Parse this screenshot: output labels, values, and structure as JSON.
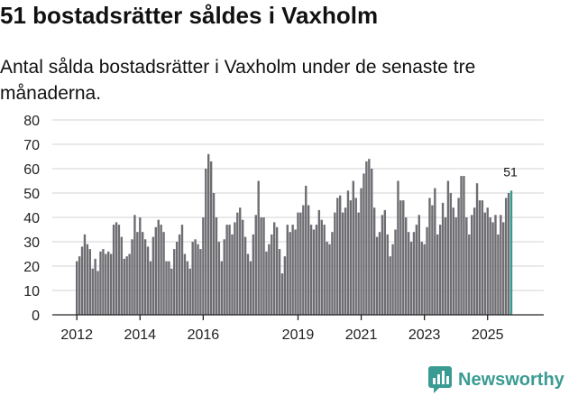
{
  "header": {
    "title": "51 bostadsrätter såldes i Vaxholm",
    "subtitle": "Antal sålda bostadsrätter i Vaxholm under de senaste tre månaderna."
  },
  "brand": {
    "name": "Newsworthy",
    "color": "#3a9b92",
    "icon": "newsworthy-chart-icon"
  },
  "chart_data": {
    "type": "bar",
    "title": "51 bostadsrätter såldes i Vaxholm",
    "subtitle": "Antal sålda bostadsrätter i Vaxholm under de senaste tre månaderna.",
    "xlabel": "",
    "ylabel": "",
    "ylim": [
      0,
      80
    ],
    "yticks": [
      0,
      10,
      20,
      30,
      40,
      50,
      60,
      70,
      80
    ],
    "xticks": [
      {
        "label": "2012",
        "index": 0
      },
      {
        "label": "2014",
        "index": 24
      },
      {
        "label": "2016",
        "index": 48
      },
      {
        "label": "2019",
        "index": 84
      },
      {
        "label": "2021",
        "index": 108
      },
      {
        "label": "2023",
        "index": 132
      },
      {
        "label": "2025",
        "index": 156
      }
    ],
    "start": "2012-01",
    "bar_color": "#6e6d72",
    "last_bar_color": "#3a9b92",
    "end_label": "51",
    "values": [
      22,
      24,
      28,
      33,
      29,
      27,
      19,
      23,
      18,
      26,
      27,
      25,
      26,
      25,
      37,
      38,
      37,
      32,
      23,
      24,
      25,
      31,
      41,
      34,
      40,
      34,
      31,
      28,
      22,
      32,
      36,
      39,
      37,
      34,
      22,
      22,
      19,
      27,
      30,
      33,
      37,
      25,
      22,
      19,
      30,
      31,
      29,
      27,
      40,
      60,
      66,
      63,
      50,
      40,
      30,
      22,
      31,
      37,
      37,
      33,
      38,
      42,
      44,
      39,
      32,
      25,
      22,
      33,
      41,
      55,
      40,
      40,
      26,
      29,
      33,
      38,
      36,
      27,
      17,
      24,
      37,
      34,
      37,
      35,
      42,
      42,
      45,
      53,
      45,
      37,
      35,
      37,
      43,
      39,
      37,
      30,
      29,
      34,
      42,
      48,
      49,
      42,
      44,
      51,
      47,
      55,
      48,
      42,
      52,
      58,
      63,
      64,
      60,
      44,
      32,
      34,
      41,
      43,
      33,
      24,
      29,
      35,
      55,
      47,
      47,
      40,
      34,
      30,
      34,
      37,
      41,
      30,
      29,
      36,
      48,
      45,
      52,
      33,
      37,
      46,
      40,
      55,
      50,
      44,
      40,
      48,
      57,
      57,
      40,
      33,
      41,
      44,
      54,
      47,
      47,
      42,
      44,
      40,
      38,
      41,
      33,
      41,
      38,
      48,
      50,
      51
    ]
  }
}
